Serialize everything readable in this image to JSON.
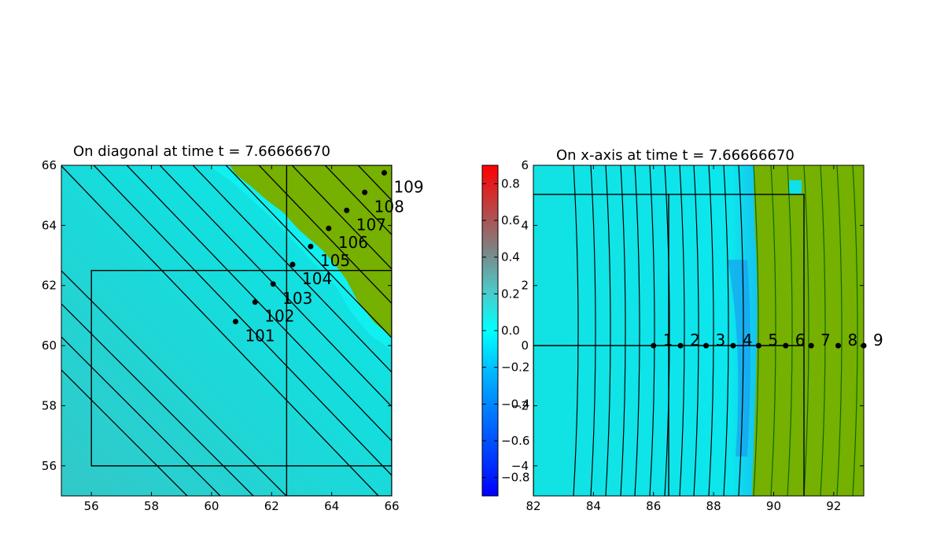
{
  "chart_data": [
    {
      "type": "heatmap",
      "title": "On diagonal at time t =      7.66666670",
      "xlim": [
        55,
        66
      ],
      "ylim": [
        55,
        66
      ],
      "xticks": [
        "56",
        "58",
        "60",
        "62",
        "64",
        "66"
      ],
      "yticks": [
        "56",
        "58",
        "60",
        "62",
        "64",
        "66"
      ],
      "grid": false,
      "gauges": [
        {
          "label": "101",
          "x": 60.8,
          "y": 60.8
        },
        {
          "label": "102",
          "x": 61.45,
          "y": 61.45
        },
        {
          "label": "103",
          "x": 62.05,
          "y": 62.05
        },
        {
          "label": "104",
          "x": 62.7,
          "y": 62.7
        },
        {
          "label": "105",
          "x": 63.3,
          "y": 63.3
        },
        {
          "label": "106",
          "x": 63.9,
          "y": 63.9
        },
        {
          "label": "107",
          "x": 64.5,
          "y": 64.5
        },
        {
          "label": "108",
          "x": 65.1,
          "y": 65.1
        },
        {
          "label": "109",
          "x": 65.75,
          "y": 65.75
        }
      ],
      "patch_boxes": [
        {
          "x": [
            56,
            66
          ],
          "y": [
            56,
            62.5
          ]
        },
        {
          "x": [
            62.5,
            66
          ],
          "y": [
            55,
            66
          ]
        }
      ],
      "colors": {
        "water": "#14e0e0",
        "deep": "#33c8c8",
        "land": "#76b000",
        "contour": "#000000"
      }
    },
    {
      "type": "heatmap",
      "title": "On x-axis at time t =      7.66666670",
      "xlim": [
        82,
        93
      ],
      "ylim": [
        -5,
        6
      ],
      "xticks": [
        "82",
        "84",
        "86",
        "88",
        "90",
        "92"
      ],
      "yticks": [
        "−4",
        "−2",
        "0",
        "2",
        "4",
        "6"
      ],
      "grid": false,
      "gauges": [
        {
          "label": "1",
          "x": 86.0,
          "y": 0
        },
        {
          "label": "2",
          "x": 86.9,
          "y": 0
        },
        {
          "label": "3",
          "x": 87.75,
          "y": 0
        },
        {
          "label": "4",
          "x": 88.65,
          "y": 0
        },
        {
          "label": "5",
          "x": 89.5,
          "y": 0
        },
        {
          "label": "6",
          "x": 90.4,
          "y": 0
        },
        {
          "label": "7",
          "x": 91.25,
          "y": 0
        },
        {
          "label": "8",
          "x": 92.15,
          "y": 0
        },
        {
          "label": "9",
          "x": 93.0,
          "y": 0
        }
      ],
      "colorbar": {
        "range": [
          -0.9,
          0.9
        ],
        "ticks": [
          "−0.8",
          "−0.6",
          "−0.4",
          "−0.2",
          "0.0",
          "0.2",
          "0.4",
          "0.6",
          "0.8"
        ],
        "ticks_at": [
          -0.8,
          -0.6,
          -0.4,
          -0.2,
          0.0,
          0.2,
          0.4,
          0.6,
          0.8
        ]
      },
      "colors": {
        "water": "#14e0e0",
        "deep": "#1aa0ff",
        "land": "#76b000",
        "contour": "#000000"
      }
    }
  ]
}
